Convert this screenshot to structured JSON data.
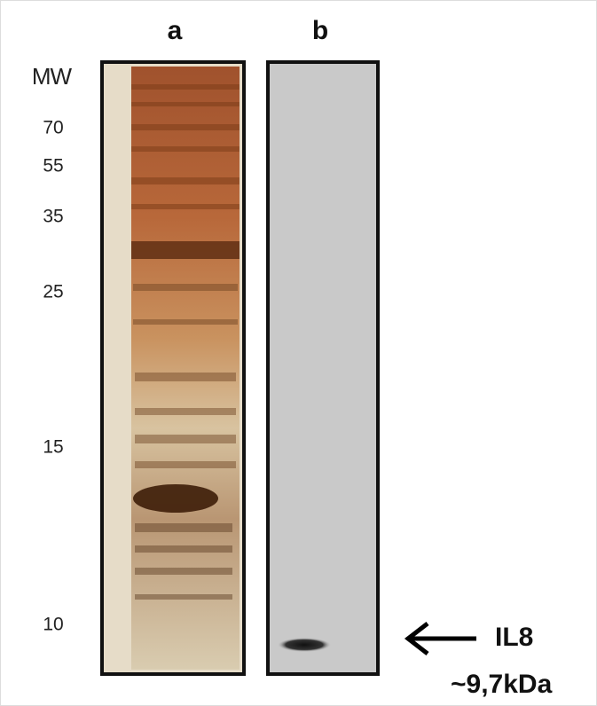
{
  "lanes": [
    {
      "label": "a"
    },
    {
      "label": "b"
    }
  ],
  "markers": {
    "title": "MW",
    "labels": [
      "70",
      "55",
      "35",
      "25",
      "15",
      "10"
    ]
  },
  "annotation": {
    "label": "IL8",
    "size": "~9,7kDa"
  }
}
